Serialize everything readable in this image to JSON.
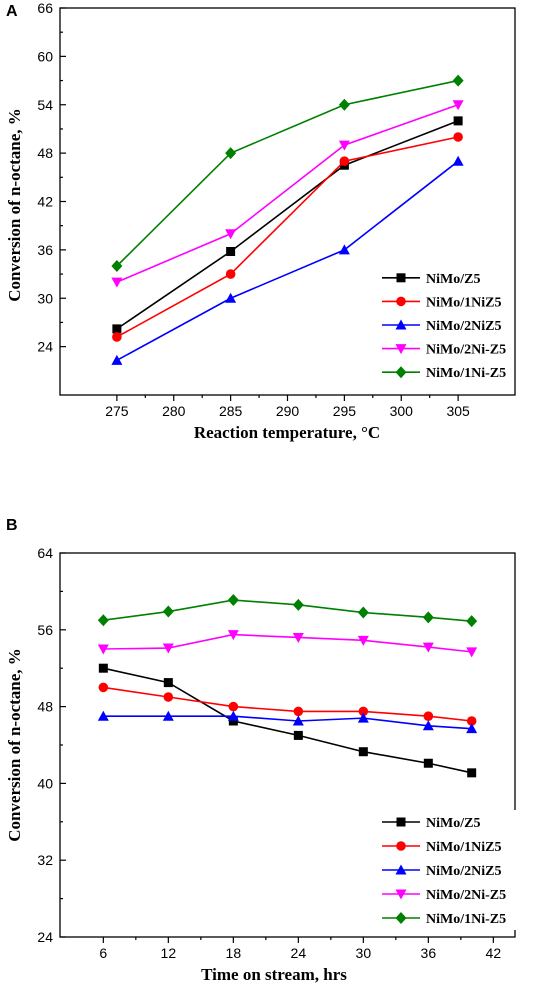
{
  "chart_data": [
    {
      "type": "line",
      "panel": "A",
      "xlabel": "Reaction temperature, °C",
      "ylabel": "Conversion of n-octane, %",
      "xlim": [
        270,
        310
      ],
      "ylim": [
        18,
        66
      ],
      "xticks": [
        275,
        280,
        285,
        290,
        295,
        300,
        305
      ],
      "yticks": [
        24,
        30,
        36,
        42,
        48,
        54,
        60,
        66
      ],
      "x": [
        275,
        285,
        295,
        305
      ],
      "legend_position": "bottom-right",
      "series": [
        {
          "name": "NiMo/Z5",
          "color": "#000000",
          "marker": "square",
          "values": [
            26.2,
            35.8,
            46.5,
            52.0
          ]
        },
        {
          "name": "NiMo/1NiZ5",
          "color": "#ff0000",
          "marker": "circle",
          "values": [
            25.2,
            33.0,
            47.0,
            50.0
          ]
        },
        {
          "name": "NiMo/2NiZ5",
          "color": "#0000ff",
          "marker": "triangle-up",
          "values": [
            22.3,
            30.0,
            36.0,
            47.0
          ]
        },
        {
          "name": "NiMo/2Ni-Z5",
          "color": "#ff00ff",
          "marker": "triangle-down",
          "values": [
            32.0,
            38.0,
            49.0,
            54.0
          ]
        },
        {
          "name": "NiMo/1Ni-Z5",
          "color": "#008000",
          "marker": "diamond",
          "values": [
            34.0,
            48.0,
            54.0,
            57.0
          ]
        }
      ]
    },
    {
      "type": "line",
      "panel": "B",
      "xlabel": "Time on stream, hrs",
      "ylabel": "Conversion of n-octane, %",
      "xlim": [
        2,
        44
      ],
      "ylim": [
        24,
        64
      ],
      "xticks": [
        6,
        12,
        18,
        24,
        30,
        36,
        42
      ],
      "yticks": [
        24,
        32,
        40,
        48,
        56,
        64
      ],
      "x": [
        6,
        12,
        18,
        24,
        30,
        36,
        40
      ],
      "legend_position": "bottom-right",
      "series": [
        {
          "name": "NiMo/Z5",
          "color": "#000000",
          "marker": "square",
          "values": [
            52.0,
            50.5,
            46.5,
            45.0,
            43.3,
            42.1,
            41.1
          ]
        },
        {
          "name": "NiMo/1NiZ5",
          "color": "#ff0000",
          "marker": "circle",
          "values": [
            50.0,
            49.0,
            48.0,
            47.5,
            47.5,
            47.0,
            46.5
          ]
        },
        {
          "name": "NiMo/2NiZ5",
          "color": "#0000ff",
          "marker": "triangle-up",
          "values": [
            47.0,
            47.0,
            47.0,
            46.5,
            46.8,
            46.0,
            45.7
          ]
        },
        {
          "name": "NiMo/2Ni-Z5",
          "color": "#ff00ff",
          "marker": "triangle-down",
          "values": [
            54.0,
            54.1,
            55.5,
            55.2,
            54.9,
            54.2,
            53.7
          ]
        },
        {
          "name": "NiMo/1Ni-Z5",
          "color": "#008000",
          "marker": "diamond",
          "values": [
            57.0,
            57.9,
            59.1,
            58.6,
            57.8,
            57.3,
            56.9
          ]
        }
      ]
    }
  ]
}
